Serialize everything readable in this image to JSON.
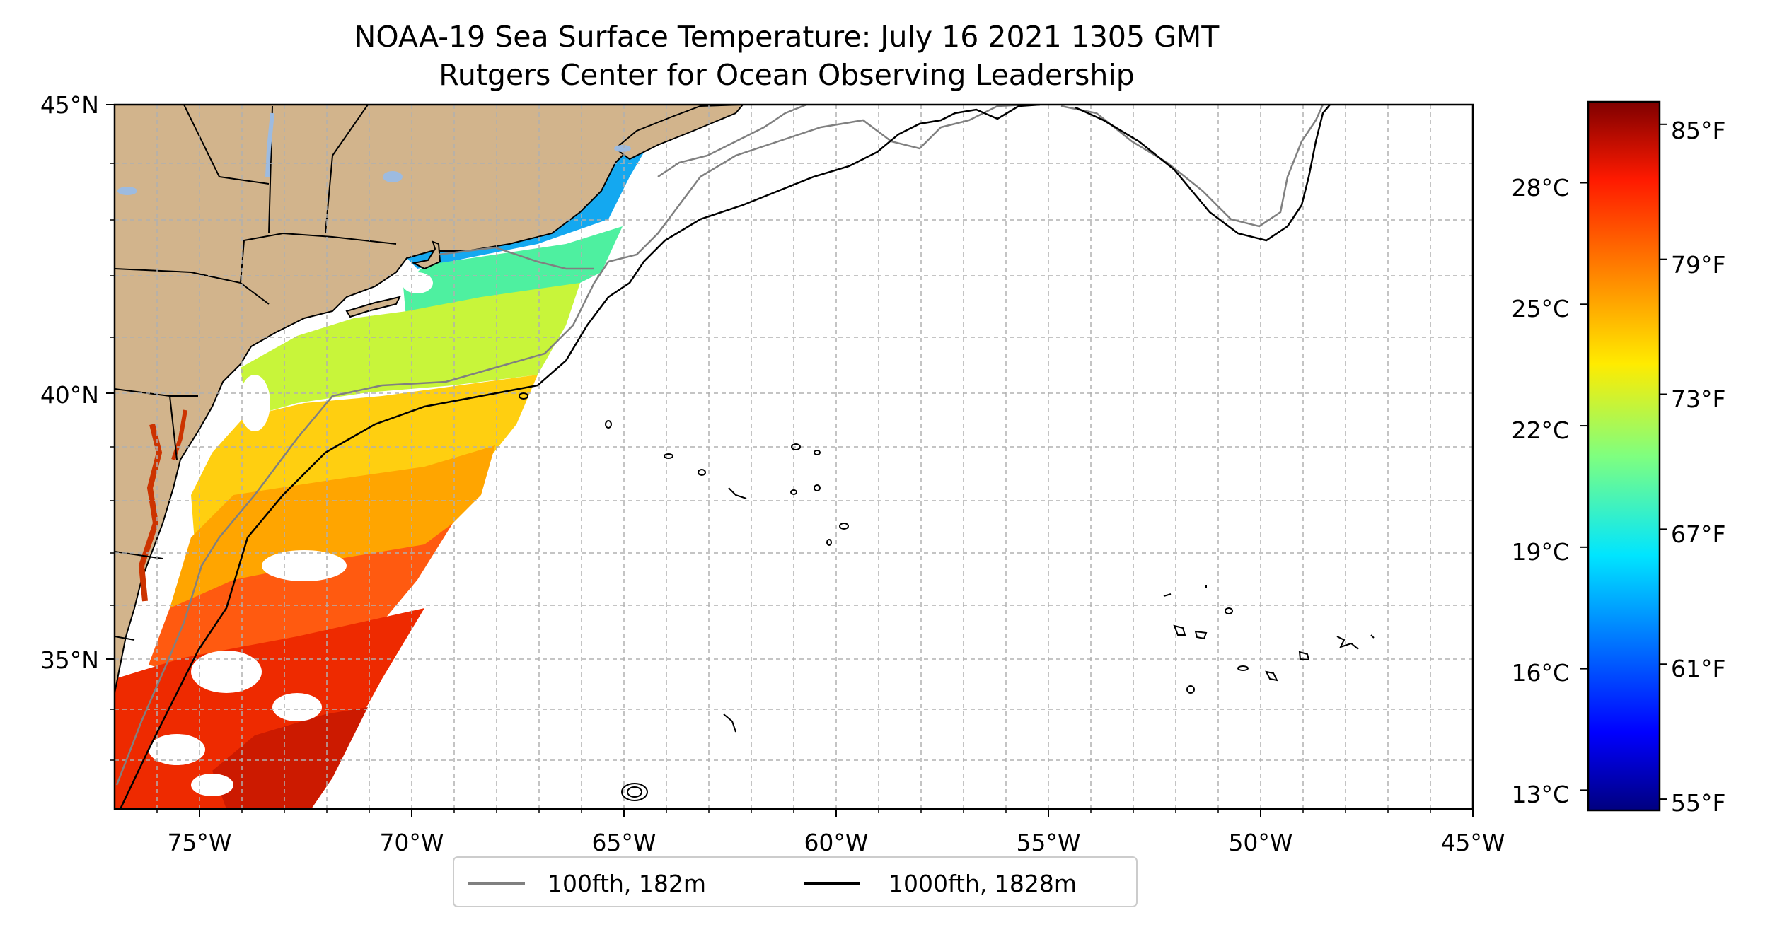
{
  "title": {
    "line1": "NOAA-19 Sea Surface Temperature: July 16 2021 1305 GMT",
    "line2": "Rutgers Center for Ocean Observing Leadership"
  },
  "map": {
    "lon_range": [
      -77,
      -45
    ],
    "lat_range": [
      32.5,
      45
    ],
    "lat_ticks": [
      {
        "lat": 45,
        "label": "45°N"
      },
      {
        "lat": 40,
        "label": "40°N"
      },
      {
        "lat": 35,
        "label": "35°N"
      }
    ],
    "lon_ticks": [
      {
        "lon": -75,
        "label": "75°W"
      },
      {
        "lon": -70,
        "label": "70°W"
      },
      {
        "lon": -65,
        "label": "65°W"
      },
      {
        "lon": -60,
        "label": "60°W"
      },
      {
        "lon": -55,
        "label": "55°W"
      },
      {
        "lon": -50,
        "label": "50°W"
      },
      {
        "lon": -45,
        "label": "45°W"
      }
    ],
    "gridlines": "dashed, every 1°",
    "colors": {
      "land": "#d2b48c",
      "lakes": "#9dbbe0",
      "isobath_100fth": "#808080",
      "isobath_1000fth": "#000000"
    }
  },
  "legend": {
    "placement": "bottom-center",
    "entries": [
      {
        "label": "100fth, 182m",
        "color": "#808080"
      },
      {
        "label": "1000fth, 1828m",
        "color": "#000000"
      }
    ]
  },
  "colorbar": {
    "colormap": "jet",
    "range_c": [
      12.5,
      30
    ],
    "celsius_ticks": [
      {
        "value": 28,
        "label": "28°C"
      },
      {
        "value": 25,
        "label": "25°C"
      },
      {
        "value": 22,
        "label": "22°C"
      },
      {
        "value": 19,
        "label": "19°C"
      },
      {
        "value": 16,
        "label": "16°C"
      },
      {
        "value": 13,
        "label": "13°C"
      }
    ],
    "fahrenheit_ticks": [
      {
        "value": 85,
        "label": "85°F"
      },
      {
        "value": 79,
        "label": "79°F"
      },
      {
        "value": 73,
        "label": "73°F"
      },
      {
        "value": 67,
        "label": "67°F"
      },
      {
        "value": 61,
        "label": "61°F"
      },
      {
        "value": 55,
        "label": "55°F"
      }
    ]
  }
}
